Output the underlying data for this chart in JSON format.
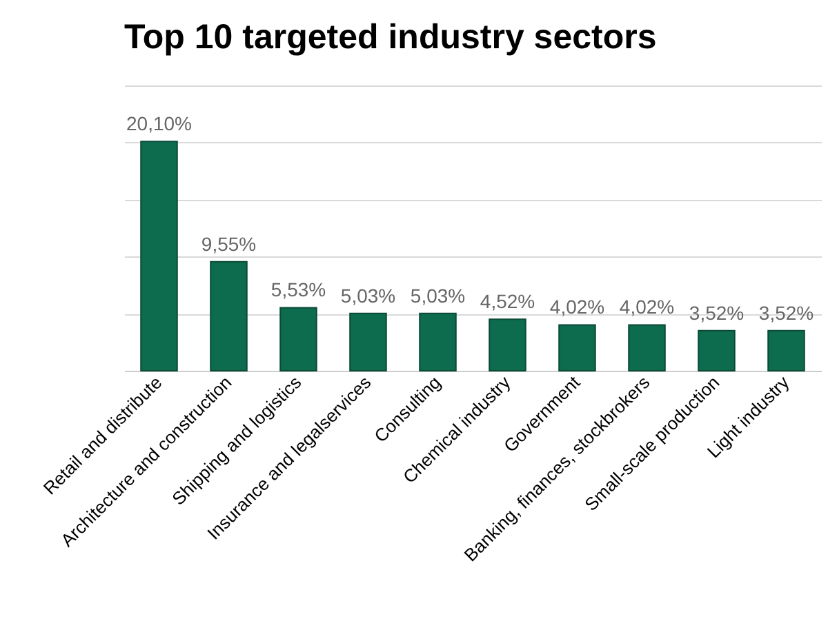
{
  "chart_data": {
    "type": "bar",
    "title": "Top 10 targeted industry sectors",
    "categories": [
      "Retail and distribute",
      "Architecture and construction",
      "Shipping and logistics",
      "Insurance and legalservices",
      "Consulting",
      "Chemical industry",
      "Government",
      "Banking, finances, stockbrokers",
      "Small-scale production",
      "Light industry"
    ],
    "values": [
      20.1,
      9.55,
      5.53,
      5.03,
      5.03,
      4.52,
      4.02,
      4.02,
      3.52,
      3.52
    ],
    "value_labels": [
      "20,10%",
      "9,55%",
      "5,53%",
      "5,03%",
      "5,03%",
      "4,52%",
      "4,02%",
      "4,02%",
      "3,52%",
      "3,52%"
    ],
    "color": "#0d6b4e",
    "ylim": [
      0,
      25
    ],
    "yticks": [
      {
        "value": 0,
        "label": null
      },
      {
        "value": 5,
        "label": null
      },
      {
        "value": 10,
        "label": null
      },
      {
        "value": 15,
        "label": null
      },
      {
        "value": 20,
        "label": null
      },
      {
        "value": 25,
        "label": null
      }
    ],
    "grid": "y",
    "tick_labels": "x"
  }
}
